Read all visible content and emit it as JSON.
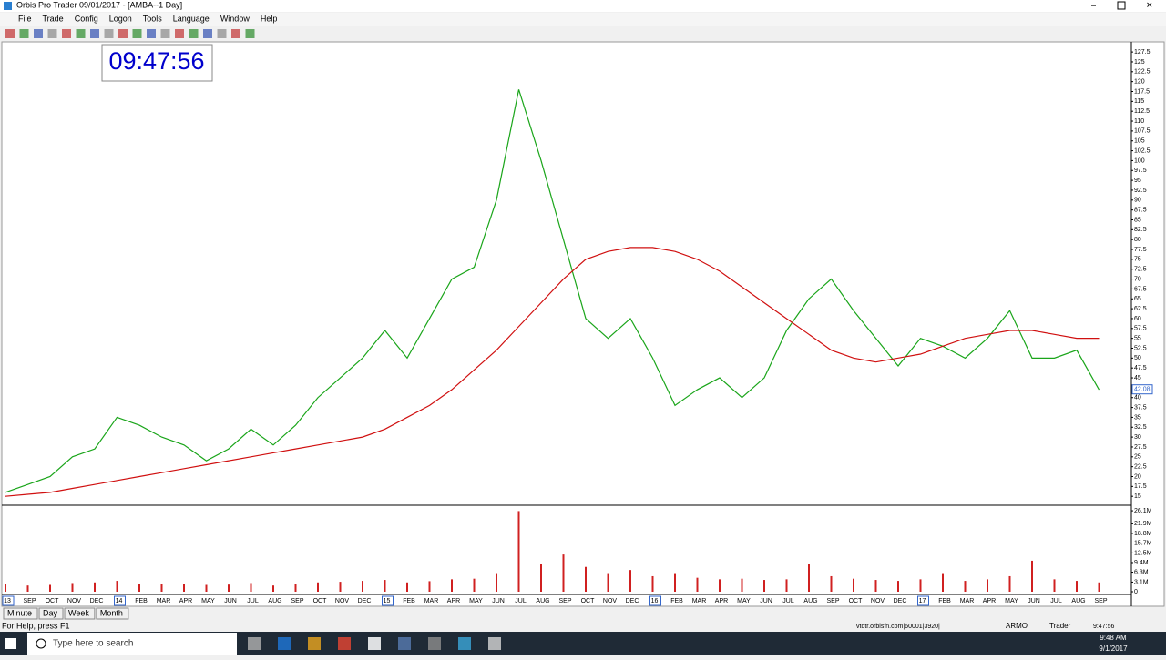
{
  "window": {
    "title": "Orbis Pro Trader 09/01/2017 - [AMBA--1 Day]"
  },
  "menu": [
    "File",
    "Trade",
    "Config",
    "Logon",
    "Tools",
    "Language",
    "Window",
    "Help"
  ],
  "clock": "09:47:56",
  "chart_data": [
    {
      "type": "line",
      "categories": [
        "13",
        "SEP",
        "OCT",
        "NOV",
        "DEC",
        "14",
        "FEB",
        "MAR",
        "APR",
        "MAY",
        "JUN",
        "JUL",
        "AUG",
        "SEP",
        "OCT",
        "NOV",
        "DEC",
        "15",
        "FEB",
        "MAR",
        "APR",
        "MAY",
        "JUN",
        "JUL",
        "AUG",
        "SEP",
        "OCT",
        "NOV",
        "DEC",
        "16",
        "FEB",
        "MAR",
        "APR",
        "MAY",
        "JUN",
        "JUL",
        "AUG",
        "SEP",
        "OCT",
        "NOV",
        "DEC",
        "17",
        "FEB",
        "MAR",
        "APR",
        "MAY",
        "JUN",
        "JUL",
        "AUG",
        "SEP"
      ],
      "series": [
        {
          "color": "#1aa51a",
          "values": [
            16,
            18,
            20,
            25,
            27,
            35,
            33,
            30,
            28,
            24,
            27,
            32,
            28,
            33,
            40,
            45,
            50,
            57,
            50,
            60,
            70,
            73,
            90,
            118,
            100,
            80,
            60,
            55,
            60,
            50,
            38,
            42,
            45,
            40,
            45,
            57,
            65,
            70,
            62,
            55,
            48,
            55,
            53,
            50,
            55,
            62,
            50,
            50,
            52,
            42
          ]
        },
        {
          "color": "#d01010",
          "values": [
            15,
            15.5,
            16,
            17,
            18,
            19,
            20,
            21,
            22,
            23,
            24,
            25,
            26,
            27,
            28,
            29,
            30,
            32,
            35,
            38,
            42,
            47,
            52,
            58,
            64,
            70,
            75,
            77,
            78,
            78,
            77,
            75,
            72,
            68,
            64,
            60,
            56,
            52,
            50,
            49,
            50,
            51,
            53,
            55,
            56,
            57,
            57,
            56,
            55,
            55
          ]
        }
      ],
      "last_price": 42.08,
      "ylim": [
        13.2,
        129.6
      ],
      "yticks": [
        15,
        17.5,
        20,
        22.5,
        25,
        27.5,
        30,
        32.5,
        35,
        37.5,
        40,
        42.5,
        45,
        47.5,
        50,
        52.5,
        55,
        57.5,
        60,
        62.5,
        65,
        67.5,
        70,
        72.5,
        75,
        77.5,
        80,
        82.5,
        85,
        87.5,
        90,
        92.5,
        95,
        97.5,
        100,
        102.5,
        105,
        107.5,
        110,
        112.5,
        115,
        117.5,
        120,
        122.5,
        125,
        127.5
      ]
    },
    {
      "type": "bar",
      "color": "#d02020",
      "values": [
        2500000,
        2000000,
        2200000,
        2800000,
        3000000,
        3500000,
        2500000,
        2400000,
        2600000,
        2200000,
        2300000,
        2800000,
        2000000,
        2500000,
        3000000,
        3200000,
        3500000,
        3800000,
        3000000,
        3400000,
        4000000,
        4200000,
        6000000,
        26000000,
        9000000,
        12000000,
        8000000,
        6000000,
        7000000,
        5000000,
        6000000,
        4500000,
        4000000,
        4200000,
        3800000,
        4000000,
        9000000,
        5000000,
        4200000,
        3800000,
        3500000,
        4000000,
        6000000,
        3500000,
        4000000,
        5000000,
        10000000,
        4000000,
        3500000,
        3000000
      ],
      "ylim": [
        0,
        27000000
      ],
      "yticks": [
        0,
        {
          "value": 3100000,
          "label": "3.1M"
        },
        {
          "value": 6300000,
          "label": "6.3M"
        },
        {
          "value": 9400000,
          "label": "9.4M"
        },
        {
          "value": 12500000,
          "label": "12.5M"
        },
        {
          "value": 15700000,
          "label": "15.7M"
        },
        {
          "value": 18800000,
          "label": "18.8M"
        },
        {
          "value": 21900000,
          "label": "21.9M"
        },
        {
          "value": 26100000,
          "label": "26.1M"
        }
      ]
    }
  ],
  "tabs": [
    "Minute",
    "Day",
    "Week",
    "Month"
  ],
  "status": {
    "help": "For Help, press F1",
    "server": "vtdtr.orbisfn.com|60001|3920|",
    "user": "ARMO",
    "role": "Trader",
    "time": "9:47:56"
  },
  "taskbar": {
    "search": "Type here to search",
    "time": "9:48 AM",
    "date": "9/1/2017"
  }
}
